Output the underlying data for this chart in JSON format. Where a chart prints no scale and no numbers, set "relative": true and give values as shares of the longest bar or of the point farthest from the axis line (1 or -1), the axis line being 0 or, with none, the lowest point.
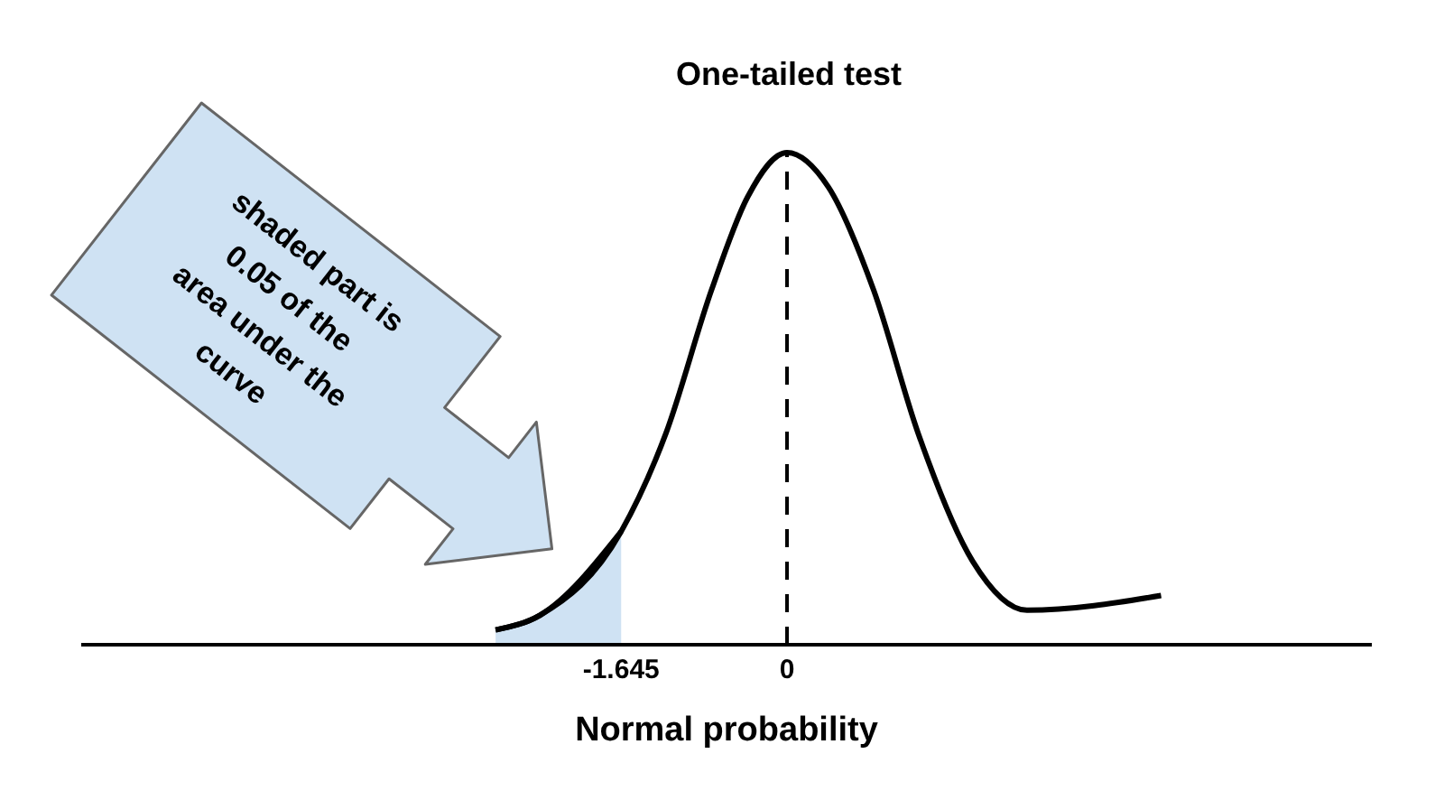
{
  "chart_data": {
    "type": "line",
    "title": "One-tailed test",
    "xlabel": "Normal probability",
    "relative": true,
    "xlim": [
      -7,
      5.8
    ],
    "xticks": [
      -1.645,
      0
    ],
    "series": [
      {
        "color": "#000000",
        "x": [
          -2.89,
          -2.45,
          -1.645,
          -1.2,
          -0.75,
          -0.39,
          0,
          0.41,
          0.86,
          1.3,
          1.84,
          2.38,
          3.71
        ],
        "values": [
          0.03,
          0.06,
          0.23,
          0.43,
          0.72,
          0.91,
          1,
          0.93,
          0.72,
          0.43,
          0.17,
          0.07,
          0.1
        ]
      },
      {
        "type": "area",
        "color": "#cfe2f3",
        "x": [
          -2.89,
          -2.45,
          -1.645
        ],
        "values": [
          0.03,
          0.06,
          0.23
        ]
      }
    ],
    "ref_lines": [
      {
        "axis": "x",
        "value": 0,
        "line_style": "dashed",
        "color": "#000000"
      }
    ],
    "annotations": [
      "shaded part is\n0.05 of the\narea under the\ncurve"
    ]
  }
}
